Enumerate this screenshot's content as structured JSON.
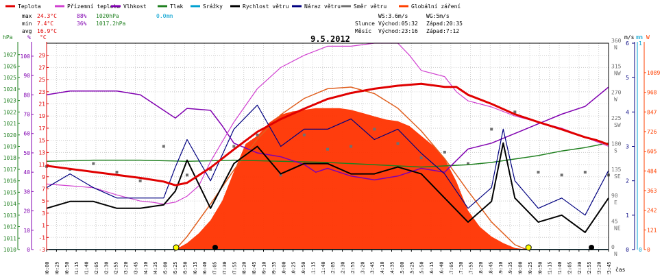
{
  "legend": [
    {
      "label": "Teplota",
      "color": "#e00000"
    },
    {
      "label": "Přízemní teplota",
      "color": "#d040d0"
    },
    {
      "label": "Vlhkost",
      "color": "#8000b0"
    },
    {
      "label": "Tlak",
      "color": "#208020"
    },
    {
      "label": "Srážky",
      "color": "#00a0d0"
    },
    {
      "label": "Rychlost větru",
      "color": "#000000"
    },
    {
      "label": "Náraz větru",
      "color": "#000080"
    },
    {
      "label": "Směr větru",
      "color": "#707070"
    },
    {
      "label": "Globální záření",
      "color": "#ff4000"
    }
  ],
  "stats": {
    "max": {
      "label": "max",
      "temp": "24.3°C",
      "hum": "88%",
      "press": "1020hPa",
      "rain": "0.0mm"
    },
    "min": {
      "label": "min",
      "temp": "7.4°C",
      "hum": "36%",
      "press": "1017.2hPa"
    },
    "avg": {
      "label": "avg",
      "temp": "16.9°C"
    }
  },
  "wind_info": {
    "ws": "WS:3.6m/s",
    "wg": "WG:5m/s"
  },
  "sun_info": {
    "label": "Slunce",
    "rise": "Východ:05:32",
    "set": "Západ:20:35"
  },
  "moon_info": {
    "label": "Měsíc",
    "rise": "Východ:23:16",
    "set": "Západ:7:12"
  },
  "date": "9.5.2012",
  "axis_titles": {
    "hpa": "hPa",
    "pct": "%",
    "degc": "°C",
    "dir": "m/s",
    "ms": "mm",
    "mm": "mm",
    "w": "W",
    "time": "čas"
  },
  "colors": {
    "hpa": "#208020",
    "pct": "#8000b0",
    "degc": "#e00000",
    "dir": "#707070",
    "ms": "#000080",
    "mm": "#00a0d0",
    "w": "#ff4000",
    "grid": "#cccccc"
  },
  "chart_data": {
    "type": "line",
    "title": "9.5.2012",
    "xlabel": "čas",
    "x_ticks": [
      "00:00",
      "00:25",
      "00:50",
      "01:15",
      "01:40",
      "02:05",
      "02:30",
      "02:55",
      "03:20",
      "03:45",
      "04:10",
      "04:35",
      "05:00",
      "05:25",
      "05:50",
      "06:15",
      "06:40",
      "07:05",
      "07:30",
      "07:55",
      "08:20",
      "08:45",
      "09:10",
      "09:35",
      "10:00",
      "10:25",
      "10:50",
      "11:15",
      "11:40",
      "12:05",
      "12:30",
      "12:55",
      "13:20",
      "13:45",
      "14:10",
      "14:35",
      "15:00",
      "15:25",
      "15:50",
      "16:15",
      "16:40",
      "17:05",
      "17:30",
      "17:55",
      "18:20",
      "18:45",
      "19:10",
      "19:35",
      "20:00",
      "20:25",
      "20:50",
      "21:15",
      "21:40",
      "22:05",
      "22:30",
      "22:55",
      "23:20",
      "23:45"
    ],
    "axes": {
      "pressure_hpa": {
        "range": [
          1010,
          1028
        ],
        "ticks": [
          1010,
          1011,
          1012,
          1013,
          1014,
          1015,
          1016,
          1017,
          1018,
          1019,
          1020,
          1021,
          1022,
          1023,
          1024,
          1025,
          1026,
          1027
        ]
      },
      "humidity_pct": {
        "range": [
          0,
          106.7
        ],
        "ticks": [
          0,
          10,
          20,
          30,
          40,
          50,
          60,
          70,
          80,
          90,
          100
        ]
      },
      "temperature_c": {
        "range": [
          -3,
          31
        ],
        "ticks": [
          -3,
          -1,
          1,
          3,
          5,
          7,
          9,
          11,
          13,
          15,
          17,
          19,
          21,
          23,
          25,
          27,
          29
        ]
      },
      "wind_dir_deg": {
        "range": [
          0,
          360
        ],
        "ticks": [
          0,
          45,
          90,
          135,
          180,
          225,
          270,
          315,
          360
        ],
        "tick_labels": [
          "N",
          "NE",
          "E",
          "SE",
          "S",
          "SW",
          "W",
          "NW",
          "N"
        ]
      },
      "wind_speed_ms": {
        "range": [
          0,
          6
        ],
        "ticks": [
          0,
          1,
          2,
          3,
          4,
          5,
          6
        ]
      },
      "rain_mm": {
        "range": [
          0,
          1
        ],
        "ticks": [
          0,
          1
        ]
      },
      "radiation_w": {
        "range": [
          0,
          1270
        ],
        "ticks": [
          0,
          121,
          242,
          363,
          484,
          605,
          726,
          847,
          968,
          1089
        ]
      }
    },
    "series": [
      {
        "name": "Teplota",
        "unit": "°C",
        "x": [
          0,
          1,
          2,
          3,
          4,
          5,
          5.5,
          6,
          7,
          8,
          9,
          10,
          11,
          12,
          13,
          14,
          15,
          16,
          17,
          17.5,
          18,
          19,
          20,
          21,
          22,
          23,
          23.5,
          24
        ],
        "values": [
          10.8,
          10.3,
          9.8,
          9.3,
          8.8,
          8.2,
          7.6,
          8.0,
          10.5,
          13.5,
          16.4,
          18.5,
          20.2,
          21.8,
          22.8,
          23.5,
          24.0,
          24.3,
          23.8,
          23.8,
          22.5,
          21.0,
          19.3,
          18.0,
          16.8,
          15.5,
          15.0,
          14.3
        ]
      },
      {
        "name": "Přízemní teplota",
        "unit": "°C",
        "x": [
          0,
          1,
          2,
          3,
          4,
          4.5,
          5,
          5.5,
          6,
          6.5,
          7,
          8,
          9,
          10,
          11,
          12,
          13,
          14,
          15,
          15.5,
          16,
          17,
          17.5,
          18,
          19,
          20,
          21,
          22,
          23,
          24
        ],
        "values": [
          7.8,
          7.5,
          7.2,
          6.0,
          5.0,
          4.8,
          4.5,
          4.8,
          5.8,
          7.5,
          11.5,
          18.0,
          23.5,
          27.0,
          29.0,
          30.5,
          30.5,
          31.0,
          31.0,
          29.0,
          26.5,
          25.5,
          23.0,
          21.5,
          20.5,
          19.0,
          18.0,
          17.0,
          15.5,
          14.0
        ]
      },
      {
        "name": "Vlhkost",
        "unit": "%",
        "x": [
          0,
          1,
          2,
          3,
          4,
          5,
          5.5,
          6,
          7,
          7.5,
          8,
          9,
          10,
          11,
          11.5,
          12,
          13,
          14,
          15,
          16,
          17,
          17.5,
          18,
          19,
          20,
          21,
          22,
          23,
          24
        ],
        "values": [
          80,
          82,
          82,
          82,
          80,
          72,
          68,
          73,
          72,
          64,
          55,
          50,
          48,
          44,
          40,
          42,
          38,
          36,
          38,
          42,
          40,
          46,
          52,
          55,
          60,
          65,
          70,
          74,
          84
        ]
      },
      {
        "name": "Tlak",
        "unit": "hPa",
        "x": [
          0,
          2,
          4,
          6,
          8,
          10,
          12,
          14,
          16,
          18,
          19,
          20,
          21,
          22,
          23,
          24
        ],
        "values": [
          1017.7,
          1017.8,
          1017.8,
          1017.7,
          1017.8,
          1017.7,
          1017.6,
          1017.4,
          1017.2,
          1017.4,
          1017.6,
          1017.9,
          1018.2,
          1018.6,
          1018.9,
          1019.3
        ]
      },
      {
        "name": "Srážky",
        "unit": "mm",
        "x": [
          0,
          24
        ],
        "values": [
          0,
          0
        ]
      },
      {
        "name": "Rychlost větru",
        "unit": "m/s",
        "x": [
          0,
          1,
          2,
          3,
          4,
          5,
          5.5,
          6,
          7,
          8,
          9,
          10,
          11,
          12,
          13,
          14,
          15,
          16,
          17,
          18,
          19,
          19.5,
          20,
          21,
          22,
          23,
          24
        ],
        "values": [
          1.2,
          1.4,
          1.4,
          1.2,
          1.2,
          1.3,
          1.7,
          2.6,
          1.2,
          2.5,
          3.0,
          2.2,
          2.5,
          2.5,
          2.2,
          2.2,
          2.4,
          2.2,
          1.5,
          0.8,
          1.4,
          3.1,
          1.5,
          0.8,
          1.0,
          0.5,
          1.5
        ]
      },
      {
        "name": "Náraz větru",
        "unit": "m/s",
        "x": [
          0,
          1,
          2,
          3,
          4,
          5,
          5.5,
          6,
          7,
          8,
          9,
          10,
          11,
          12,
          13,
          14,
          15,
          16,
          17,
          18,
          19,
          19.5,
          20,
          21,
          22,
          23,
          24
        ],
        "values": [
          1.8,
          2.2,
          1.8,
          1.5,
          1.5,
          1.5,
          2.4,
          3.2,
          2.0,
          3.5,
          4.2,
          3.0,
          3.5,
          3.5,
          3.8,
          3.2,
          3.5,
          2.8,
          2.2,
          1.2,
          1.8,
          3.5,
          2.0,
          1.2,
          1.5,
          1.0,
          2.3
        ]
      },
      {
        "name": "Směr větru",
        "unit": "°",
        "x": [
          0,
          1,
          2,
          3,
          4,
          5,
          6,
          7,
          8,
          9,
          10,
          11,
          12,
          13,
          14,
          15,
          16,
          17,
          18,
          19,
          20,
          21,
          22,
          23,
          24
        ],
        "values": [
          145,
          140,
          150,
          135,
          120,
          180,
          130,
          140,
          180,
          200,
          130,
          200,
          175,
          180,
          210,
          185,
          160,
          170,
          150,
          210,
          240,
          135,
          130,
          135,
          130
        ]
      },
      {
        "name": "Globální záření",
        "unit": "W",
        "x": [
          5.5,
          6,
          6.5,
          7,
          7.5,
          8,
          8.5,
          9,
          9.5,
          10,
          10.5,
          11,
          11.5,
          12,
          12.5,
          13,
          13.5,
          14,
          14.5,
          15,
          15.5,
          16,
          16.5,
          17,
          17.5,
          18,
          18.5,
          19,
          19.5,
          20,
          20.5
        ],
        "values": [
          0,
          40,
          100,
          180,
          300,
          480,
          650,
          700,
          780,
          830,
          850,
          860,
          870,
          870,
          870,
          860,
          840,
          820,
          800,
          790,
          760,
          700,
          640,
          560,
          420,
          240,
          140,
          80,
          40,
          10,
          0
        ]
      },
      {
        "name": "Globální záření (teoretické)",
        "unit": "W",
        "x": [
          5.5,
          6,
          7,
          8,
          9,
          10,
          11,
          12,
          13,
          14,
          15,
          16,
          17,
          18,
          19,
          20,
          20.5
        ],
        "values": [
          0,
          80,
          280,
          490,
          680,
          830,
          930,
          990,
          1000,
          960,
          870,
          730,
          560,
          360,
          170,
          30,
          0
        ]
      }
    ]
  }
}
